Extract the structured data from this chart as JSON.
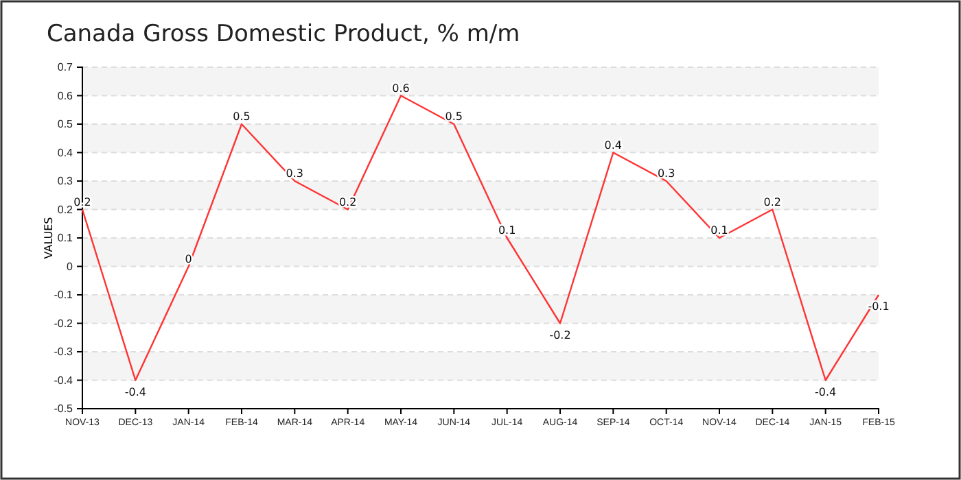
{
  "chart_data": {
    "type": "line",
    "title": "Canada Gross Domestic Product, % m/m",
    "ylabel": "VALUES",
    "categories": [
      "NOV-13",
      "DEC-13",
      "JAN-14",
      "FEB-14",
      "MAR-14",
      "APR-14",
      "MAY-14",
      "JUN-14",
      "JUL-14",
      "AUG-14",
      "SEP-14",
      "OCT-14",
      "NOV-14",
      "DEC-14",
      "JAN-15",
      "FEB-15"
    ],
    "series": [
      {
        "color": "#ff3333",
        "values": [
          0.2,
          -0.4,
          0,
          0.5,
          0.3,
          0.2,
          0.6,
          0.5,
          0.1,
          -0.2,
          0.4,
          0.3,
          0.1,
          0.2,
          -0.4,
          -0.1
        ]
      }
    ],
    "ylim": [
      -0.5,
      0.7
    ],
    "yticks": [
      -0.5,
      -0.4,
      -0.3,
      -0.2,
      -0.1,
      0,
      0.1,
      0.2,
      0.3,
      0.4,
      0.5,
      0.6,
      0.7
    ],
    "grid": "y",
    "data_labels": true,
    "marker": "none",
    "line_style": "solid"
  }
}
